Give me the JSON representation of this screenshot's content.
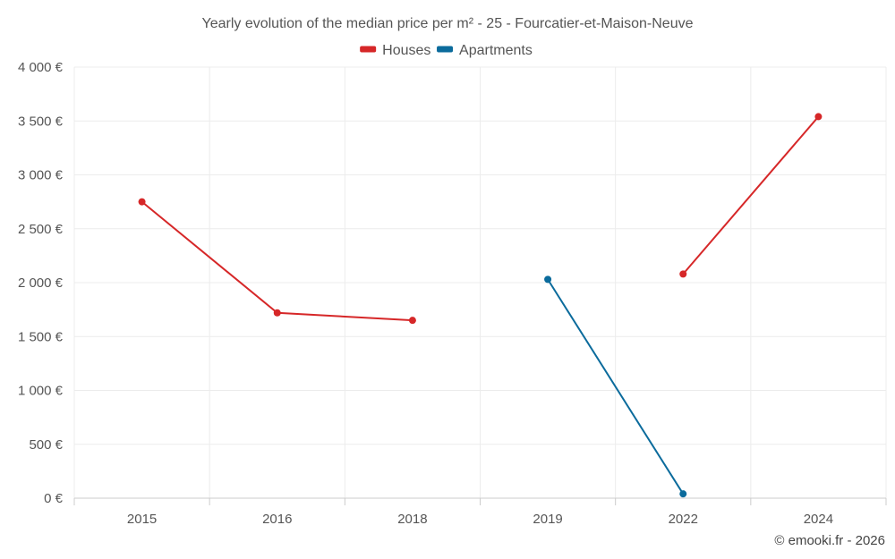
{
  "chart_data": {
    "type": "line",
    "title": "Yearly evolution of the median price per m² - 25 - Fourcatier-et-Maison-Neuve",
    "categories": [
      "2015",
      "2016",
      "2018",
      "2019",
      "2022",
      "2024"
    ],
    "y_ticks": [
      0,
      500,
      1000,
      1500,
      2000,
      2500,
      3000,
      3500,
      4000
    ],
    "y_tick_labels": [
      "0 €",
      "500 €",
      "1 000 €",
      "1 500 €",
      "2 000 €",
      "2 500 €",
      "3 000 €",
      "3 500 €",
      "4 000 €"
    ],
    "ylim": [
      0,
      4000
    ],
    "xlabel": "",
    "ylabel": "",
    "grid": true,
    "legend_position": "top-center",
    "series": [
      {
        "name": "Houses",
        "color": "#d62728",
        "values": [
          2750,
          1720,
          1650,
          null,
          2080,
          3540
        ]
      },
      {
        "name": "Apartments",
        "color": "#0b6b9c",
        "values": [
          null,
          null,
          null,
          2030,
          40,
          null
        ]
      }
    ],
    "credit": "© emooki.fr - 2026"
  }
}
